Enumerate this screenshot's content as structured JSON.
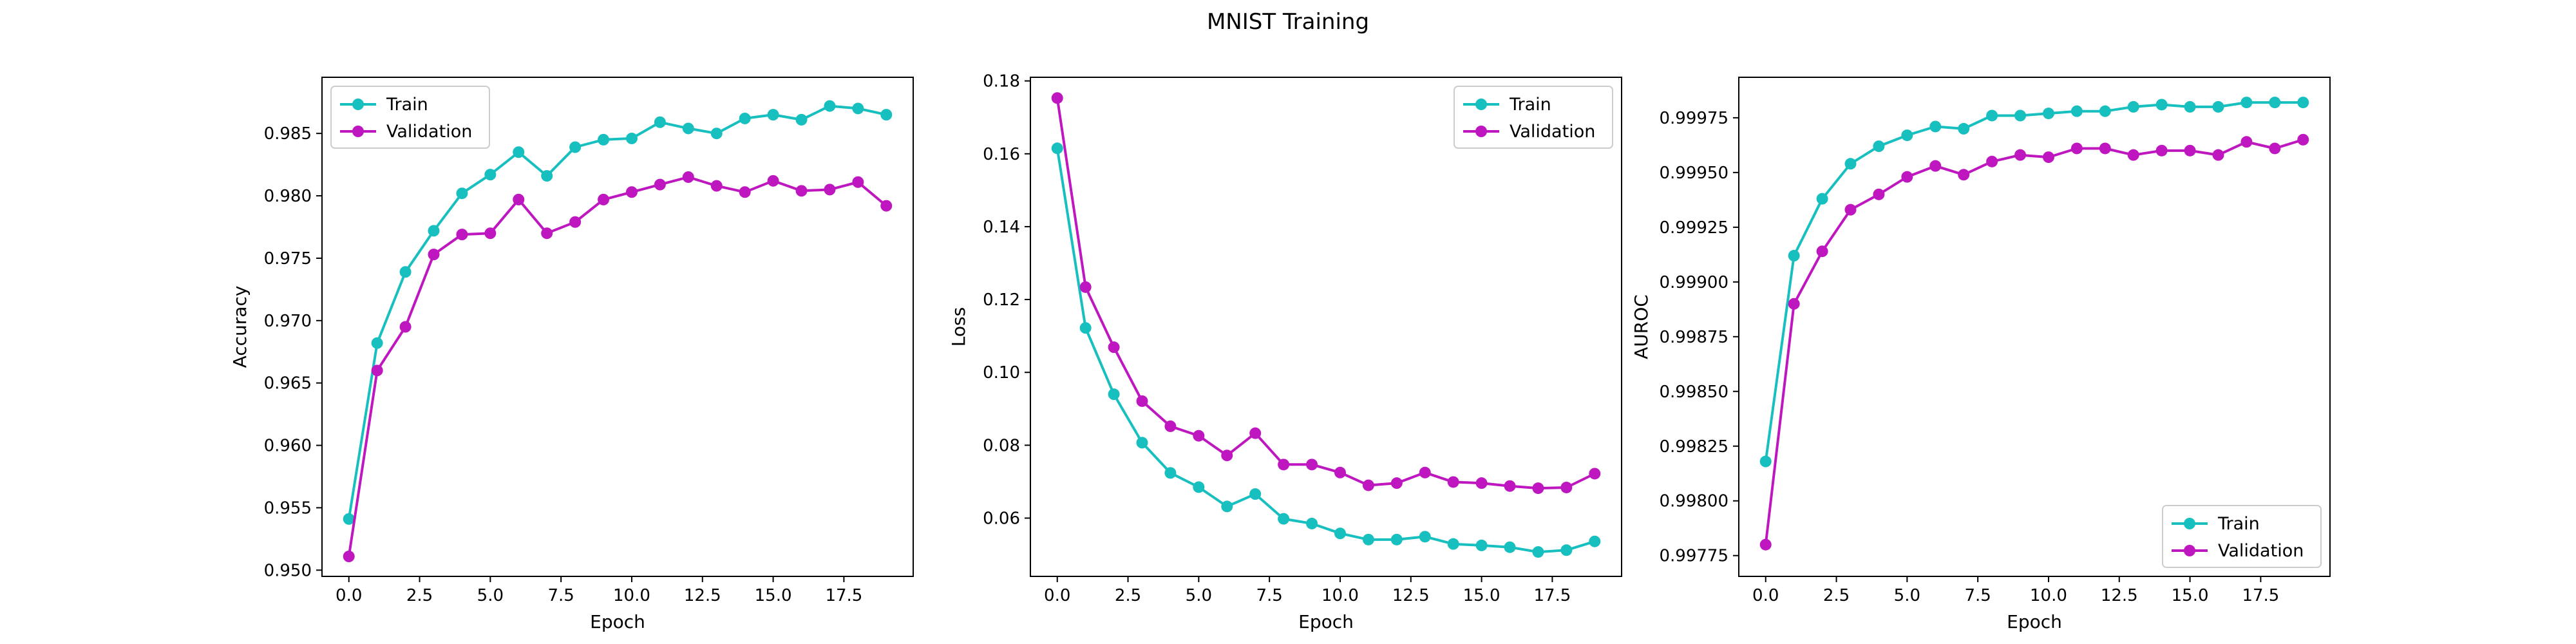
{
  "figure": {
    "title": "MNIST Training"
  },
  "colors": {
    "train": "#17bfbf",
    "validation": "#bf17bf"
  },
  "chart_data": [
    {
      "type": "line",
      "xlabel": "Epoch",
      "ylabel": "Accuracy",
      "xlim": [
        -0.95,
        19.95
      ],
      "ylim": [
        0.9495,
        0.9895
      ],
      "xticks": [
        0.0,
        2.5,
        5.0,
        7.5,
        10.0,
        12.5,
        15.0,
        17.5
      ],
      "xtick_labels": [
        "0.0",
        "2.5",
        "5.0",
        "7.5",
        "10.0",
        "12.5",
        "15.0",
        "17.5"
      ],
      "yticks": [
        0.95,
        0.955,
        0.96,
        0.965,
        0.97,
        0.975,
        0.98,
        0.985
      ],
      "ytick_labels": [
        "0.950",
        "0.955",
        "0.960",
        "0.965",
        "0.970",
        "0.975",
        "0.980",
        "0.985"
      ],
      "legend": "upper-left",
      "x": [
        0,
        1,
        2,
        3,
        4,
        5,
        6,
        7,
        8,
        9,
        10,
        11,
        12,
        13,
        14,
        15,
        16,
        17,
        18,
        19
      ],
      "series": [
        {
          "name": "Train",
          "color": "#17bfbf",
          "values": [
            0.9541,
            0.9682,
            0.9739,
            0.9772,
            0.9802,
            0.9817,
            0.9835,
            0.9816,
            0.9839,
            0.9845,
            0.9846,
            0.9859,
            0.9854,
            0.985,
            0.9862,
            0.9865,
            0.9861,
            0.9872,
            0.987,
            0.9865
          ]
        },
        {
          "name": "Validation",
          "color": "#bf17bf",
          "values": [
            0.9511,
            0.966,
            0.9695,
            0.9753,
            0.9769,
            0.977,
            0.9797,
            0.977,
            0.9779,
            0.9797,
            0.9803,
            0.9809,
            0.9815,
            0.9808,
            0.9803,
            0.9812,
            0.9804,
            0.9805,
            0.9811,
            0.9792
          ]
        }
      ]
    },
    {
      "type": "line",
      "xlabel": "Epoch",
      "ylabel": "Loss",
      "xlim": [
        -0.95,
        19.95
      ],
      "ylim": [
        0.044,
        0.181
      ],
      "xticks": [
        0.0,
        2.5,
        5.0,
        7.5,
        10.0,
        12.5,
        15.0,
        17.5
      ],
      "xtick_labels": [
        "0.0",
        "2.5",
        "5.0",
        "7.5",
        "10.0",
        "12.5",
        "15.0",
        "17.5"
      ],
      "yticks": [
        0.06,
        0.08,
        0.1,
        0.12,
        0.14,
        0.16,
        0.18
      ],
      "ytick_labels": [
        "0.06",
        "0.08",
        "0.10",
        "0.12",
        "0.14",
        "0.16",
        "0.18"
      ],
      "legend": "upper-right",
      "x": [
        0,
        1,
        2,
        3,
        4,
        5,
        6,
        7,
        8,
        9,
        10,
        11,
        12,
        13,
        14,
        15,
        16,
        17,
        18,
        19
      ],
      "series": [
        {
          "name": "Train",
          "color": "#17bfbf",
          "values": [
            0.1615,
            0.1122,
            0.094,
            0.0807,
            0.0724,
            0.0685,
            0.0632,
            0.0666,
            0.0598,
            0.0585,
            0.0558,
            0.0541,
            0.0541,
            0.0549,
            0.0529,
            0.0525,
            0.052,
            0.0507,
            0.0512,
            0.0536
          ]
        },
        {
          "name": "Validation",
          "color": "#bf17bf",
          "values": [
            0.1753,
            0.1234,
            0.1069,
            0.0921,
            0.0852,
            0.0826,
            0.0772,
            0.0833,
            0.0747,
            0.0747,
            0.0725,
            0.069,
            0.0696,
            0.0725,
            0.0699,
            0.0696,
            0.0688,
            0.0682,
            0.0684,
            0.0722
          ]
        }
      ]
    },
    {
      "type": "line",
      "xlabel": "Epoch",
      "ylabel": "AUROC",
      "xlim": [
        -0.95,
        19.95
      ],
      "ylim": [
        0.997655,
        0.999935
      ],
      "xticks": [
        0.0,
        2.5,
        5.0,
        7.5,
        10.0,
        12.5,
        15.0,
        17.5
      ],
      "xtick_labels": [
        "0.0",
        "2.5",
        "5.0",
        "7.5",
        "10.0",
        "12.5",
        "15.0",
        "17.5"
      ],
      "yticks": [
        0.99775,
        0.998,
        0.99825,
        0.9985,
        0.99875,
        0.999,
        0.99925,
        0.9995,
        0.99975
      ],
      "ytick_labels": [
        "0.99775",
        "0.99800",
        "0.99825",
        "0.99850",
        "0.99875",
        "0.99900",
        "0.99925",
        "0.99950",
        "0.99975"
      ],
      "legend": "lower-right",
      "x": [
        0,
        1,
        2,
        3,
        4,
        5,
        6,
        7,
        8,
        9,
        10,
        11,
        12,
        13,
        14,
        15,
        16,
        17,
        18,
        19
      ],
      "series": [
        {
          "name": "Train",
          "color": "#17bfbf",
          "values": [
            0.99818,
            0.99912,
            0.99938,
            0.99954,
            0.99962,
            0.99967,
            0.99971,
            0.9997,
            0.99976,
            0.99976,
            0.99977,
            0.99978,
            0.99978,
            0.9998,
            0.99981,
            0.9998,
            0.9998,
            0.99982,
            0.99982,
            0.99982
          ]
        },
        {
          "name": "Validation",
          "color": "#bf17bf",
          "values": [
            0.9978,
            0.9989,
            0.99914,
            0.99933,
            0.9994,
            0.99948,
            0.99953,
            0.99949,
            0.99955,
            0.99958,
            0.99957,
            0.99961,
            0.99961,
            0.99958,
            0.9996,
            0.9996,
            0.99958,
            0.99964,
            0.99961,
            0.99965
          ]
        }
      ]
    }
  ]
}
